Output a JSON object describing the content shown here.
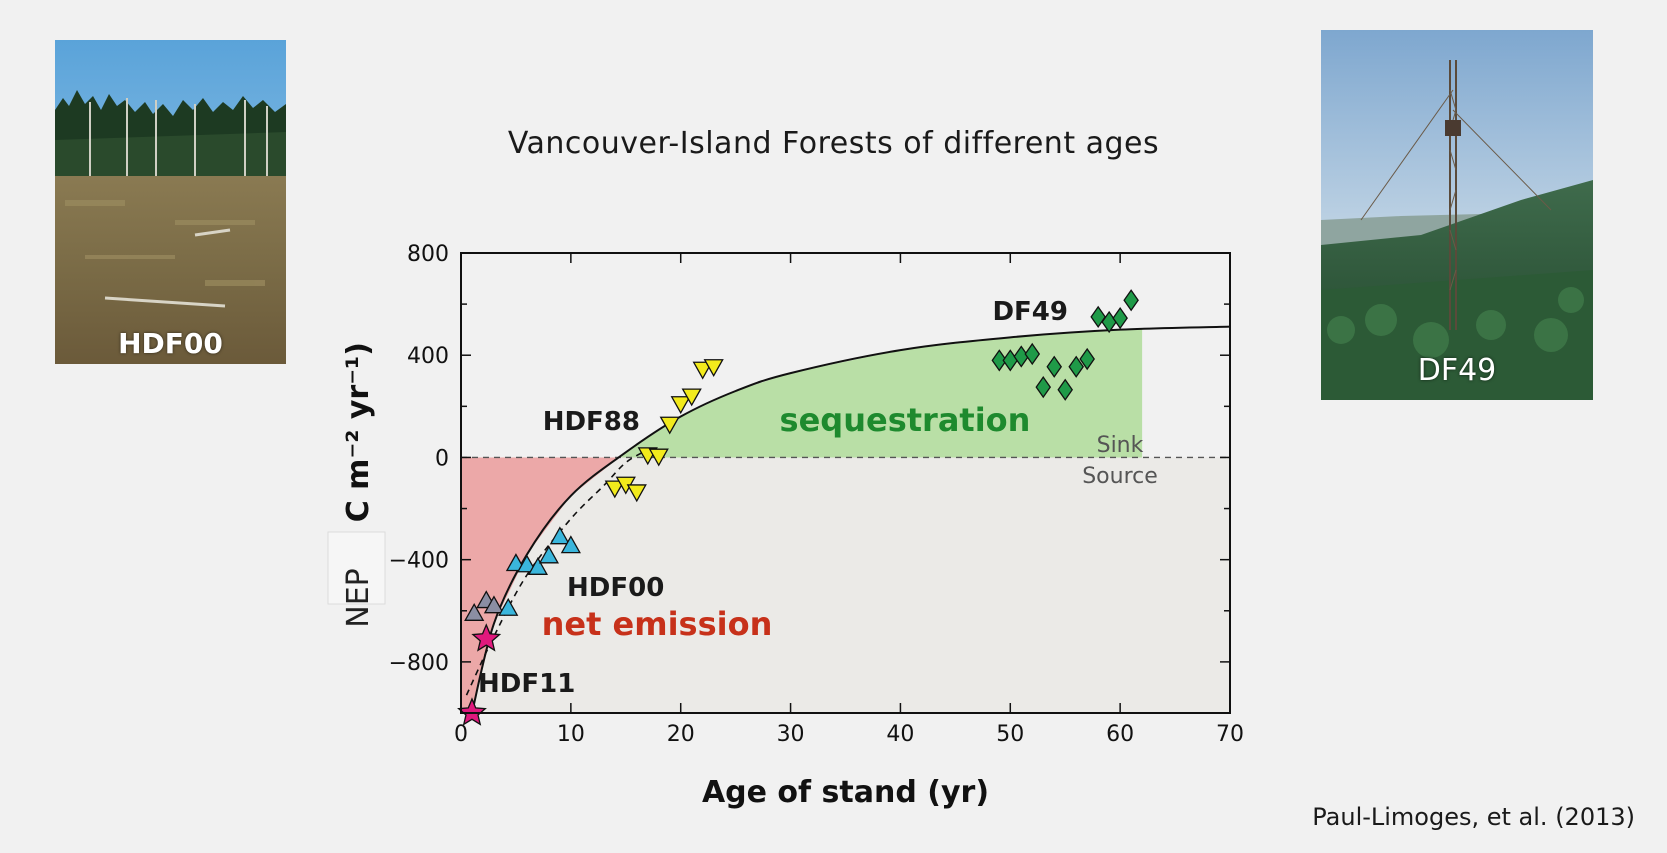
{
  "title": "Vancouver-Island Forests of different ages",
  "citation": "Paul-Limoges, et al. (2013)",
  "photos": {
    "left": {
      "label": "HDF00"
    },
    "right": {
      "label": "DF49"
    }
  },
  "colors": {
    "sink_fill": "#b9dfa6",
    "source_fill": "#ebeae7",
    "emission_fill": "#eca8a8",
    "sequestration_text": "#1e8a2e",
    "net_emission_text": "#c7311a",
    "hdf11": "#e0197d",
    "hdf00": "#3ab6dc",
    "hdf00_grey": "#8b8ea3",
    "hdf88": "#f2ea1c",
    "df49": "#1f9a48"
  },
  "chart_data": {
    "type": "scatter",
    "title": "",
    "xlabel": "Age of stand (yr)",
    "ylabel_bold": "(g C m⁻² yr⁻¹)",
    "ylabel_prefix": "NEP",
    "xlim": [
      0,
      70
    ],
    "ylim": [
      -1000,
      800
    ],
    "xticks": [
      0,
      10,
      20,
      30,
      40,
      50,
      60,
      70
    ],
    "yticks": [
      -800,
      -400,
      0,
      400,
      800
    ],
    "ytick_labels": [
      "−800",
      "−400",
      "0",
      "400",
      "800"
    ],
    "grid": false,
    "reference_line": {
      "y": 0,
      "style": "dashed",
      "label_above": "Sink",
      "label_below": "Source"
    },
    "region_labels": {
      "sink": "sequestration",
      "source": "net emission"
    },
    "series": [
      {
        "name": "HDF11",
        "marker": "star",
        "points": [
          [
            1,
            -1000
          ],
          [
            2.3,
            -710
          ]
        ]
      },
      {
        "name": "HDF00",
        "marker": "triangle-up",
        "points": [
          [
            1.2,
            -610
          ],
          [
            2.3,
            -560
          ],
          [
            3,
            -580
          ],
          [
            4.3,
            -590
          ],
          [
            5,
            -415
          ],
          [
            6,
            -420
          ],
          [
            7,
            -430
          ],
          [
            8,
            -385
          ],
          [
            9,
            -310
          ],
          [
            10,
            -345
          ]
        ]
      },
      {
        "name": "HDF88",
        "marker": "triangle-down",
        "points": [
          [
            14,
            -120
          ],
          [
            15,
            -105
          ],
          [
            16,
            -135
          ],
          [
            17,
            10
          ],
          [
            18,
            5
          ],
          [
            19,
            130
          ],
          [
            20,
            210
          ],
          [
            21,
            240
          ],
          [
            22,
            345
          ],
          [
            23,
            355
          ]
        ]
      },
      {
        "name": "DF49",
        "marker": "diamond",
        "points": [
          [
            49,
            380
          ],
          [
            50,
            380
          ],
          [
            51,
            395
          ],
          [
            52,
            405
          ],
          [
            53,
            275
          ],
          [
            54,
            355
          ],
          [
            55,
            265
          ],
          [
            56,
            355
          ],
          [
            57,
            385
          ],
          [
            58,
            550
          ],
          [
            59,
            530
          ],
          [
            60,
            545
          ],
          [
            61,
            615
          ]
        ]
      }
    ],
    "fit_curve": {
      "style": "solid",
      "points": [
        [
          1,
          -1000
        ],
        [
          3,
          -650
        ],
        [
          6,
          -380
        ],
        [
          10,
          -150
        ],
        [
          15,
          20
        ],
        [
          20,
          160
        ],
        [
          25,
          260
        ],
        [
          30,
          330
        ],
        [
          40,
          420
        ],
        [
          50,
          470
        ],
        [
          60,
          500
        ],
        [
          70,
          512
        ]
      ]
    },
    "fit_curve_dashed": {
      "style": "dashed",
      "points": [
        [
          0.5,
          -930
        ],
        [
          3,
          -700
        ],
        [
          6,
          -460
        ],
        [
          10,
          -240
        ],
        [
          13,
          -110
        ],
        [
          15,
          -20
        ],
        [
          17,
          30
        ]
      ]
    }
  }
}
